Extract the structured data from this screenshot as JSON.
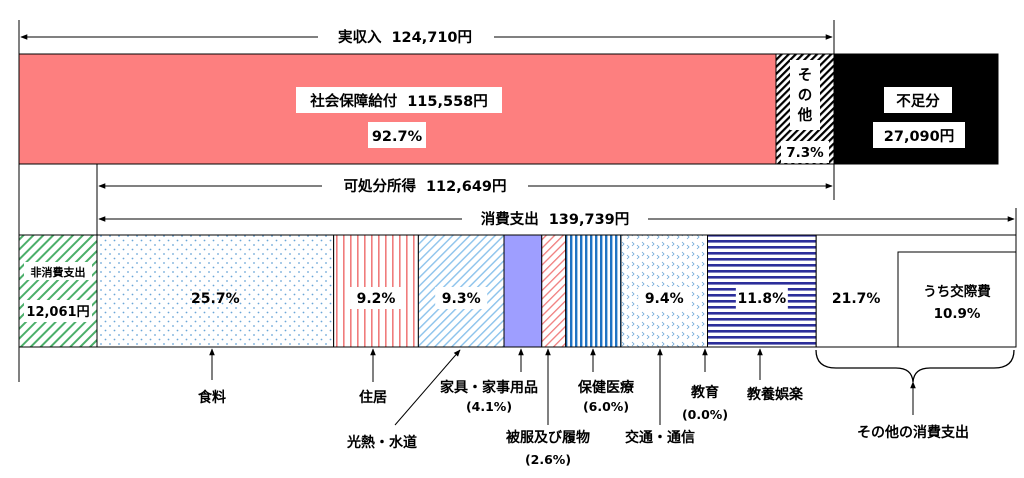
{
  "chart_data": {
    "type": "bar",
    "income": {
      "label": "実収入",
      "value_text": "124,710円",
      "segments": [
        {
          "name": "社会保障給付",
          "value_text": "115,558円",
          "percent": 92.7,
          "percent_text": "92.7%",
          "color": "#fd7f7f"
        },
        {
          "name": "その他",
          "name_lines": [
            "そ",
            "の",
            "他"
          ],
          "percent": 7.3,
          "percent_text": "7.3%",
          "pattern": "diagonal-black"
        }
      ],
      "shortfall": {
        "name": "不足分",
        "value_text": "27,090円",
        "color": "#000000"
      }
    },
    "disposable": {
      "label": "可処分所得",
      "value_text": "112,649円"
    },
    "consumption": {
      "label": "消費支出",
      "value_text": "139,739円"
    },
    "non_consumption": {
      "name": "非消費支出",
      "value_text": "12,061円",
      "pattern": "diagonal-green"
    },
    "expense_segments": [
      {
        "key": "food",
        "name": "食料",
        "percent": 25.7,
        "percent_text": "25.7%",
        "pattern": "dots-blue"
      },
      {
        "key": "housing",
        "name": "住居",
        "percent": 9.2,
        "percent_text": "9.2%",
        "pattern": "vertical-red"
      },
      {
        "key": "utilities",
        "name": "光熱・水道",
        "percent": 9.3,
        "percent_text": "9.3%",
        "pattern": "diagonal-lightblue"
      },
      {
        "key": "furniture",
        "name": "家具・家事用品",
        "percent": 4.1,
        "percent_text": "(4.1%)",
        "color": "#9e9eff"
      },
      {
        "key": "clothing",
        "name": "被服及び履物",
        "percent": 2.6,
        "percent_text": "(2.6%)",
        "pattern": "diagonal-red"
      },
      {
        "key": "medical",
        "name": "保健医療",
        "percent": 6.0,
        "percent_text": "(6.0%)",
        "pattern": "vertical-blue"
      },
      {
        "key": "transport",
        "name": "交通・通信",
        "percent": 9.4,
        "percent_text": "9.4%",
        "pattern": "chevron-blue"
      },
      {
        "key": "education",
        "name": "教育",
        "percent": 0.0,
        "percent_text": "(0.0%)"
      },
      {
        "key": "recreation",
        "name": "教養娯楽",
        "percent": 11.8,
        "percent_text": "11.8%",
        "pattern": "horizontal-navy"
      },
      {
        "key": "other",
        "name": "その他の消費支出",
        "percent": 21.7,
        "percent_text": "21.7%",
        "color": "#ffffff",
        "sub": {
          "name": "うち交際費",
          "percent": 10.9,
          "percent_text": "10.9%"
        }
      }
    ]
  }
}
